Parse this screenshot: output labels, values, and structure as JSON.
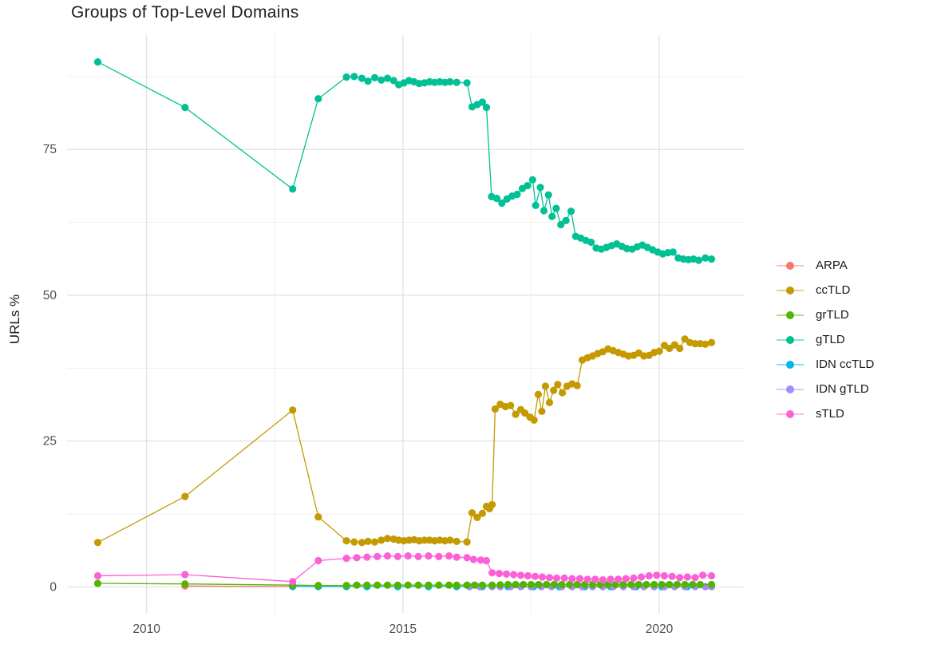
{
  "title": "Groups of Top-Level Domains",
  "chart_data": {
    "type": "line",
    "title": "Groups of Top-Level Domains",
    "xlabel": "",
    "ylabel": "URLs %",
    "xlim": [
      2008.45,
      2021.65
    ],
    "ylim": [
      -4.6,
      94.6
    ],
    "x_ticks": [
      2010,
      2015,
      2020
    ],
    "x_minor_ticks": [
      2012.5,
      2017.5
    ],
    "y_ticks": [
      0,
      25,
      50,
      75
    ],
    "y_minor_ticks": [
      12.5,
      37.5,
      62.5,
      87.5
    ],
    "grid": true,
    "legend_position": "right",
    "draw_order": [
      "ARPA",
      "IDN ccTLD",
      "IDN gTLD",
      "grTLD",
      "sTLD",
      "ccTLD",
      "gTLD"
    ],
    "series": [
      {
        "name": "ARPA",
        "color": "#F8766D",
        "points": [
          [
            2010.75,
            0.15
          ],
          [
            2012.85,
            0.05
          ]
        ]
      },
      {
        "name": "ccTLD",
        "color": "#C49A00",
        "points": [
          [
            2009.05,
            7.6
          ],
          [
            2010.75,
            15.5
          ],
          [
            2012.85,
            30.3
          ],
          [
            2013.35,
            12
          ],
          [
            2013.9,
            7.9
          ],
          [
            2014.05,
            7.7
          ],
          [
            2014.2,
            7.6
          ],
          [
            2014.32,
            7.8
          ],
          [
            2014.45,
            7.7
          ],
          [
            2014.58,
            8
          ],
          [
            2014.7,
            8.3
          ],
          [
            2014.82,
            8.2
          ],
          [
            2014.92,
            8
          ],
          [
            2015.02,
            7.9
          ],
          [
            2015.12,
            8
          ],
          [
            2015.22,
            8.1
          ],
          [
            2015.32,
            7.9
          ],
          [
            2015.42,
            8
          ],
          [
            2015.52,
            8
          ],
          [
            2015.62,
            7.9
          ],
          [
            2015.72,
            8
          ],
          [
            2015.82,
            7.9
          ],
          [
            2015.92,
            8
          ],
          [
            2016.05,
            7.8
          ],
          [
            2016.25,
            7.7
          ],
          [
            2016.35,
            12.7
          ],
          [
            2016.45,
            11.9
          ],
          [
            2016.55,
            12.6
          ],
          [
            2016.63,
            13.8
          ],
          [
            2016.69,
            13.4
          ],
          [
            2016.74,
            14.1
          ],
          [
            2016.8,
            30.5
          ],
          [
            2016.9,
            31.3
          ],
          [
            2017,
            30.9
          ],
          [
            2017.1,
            31.1
          ],
          [
            2017.2,
            29.6
          ],
          [
            2017.3,
            30.4
          ],
          [
            2017.38,
            29.8
          ],
          [
            2017.48,
            29.1
          ],
          [
            2017.56,
            28.6
          ],
          [
            2017.64,
            33
          ],
          [
            2017.71,
            30.1
          ],
          [
            2017.78,
            34.4
          ],
          [
            2017.86,
            31.6
          ],
          [
            2017.94,
            33.7
          ],
          [
            2018.02,
            34.7
          ],
          [
            2018.11,
            33.3
          ],
          [
            2018.2,
            34.4
          ],
          [
            2018.3,
            34.8
          ],
          [
            2018.4,
            34.5
          ],
          [
            2018.5,
            38.9
          ],
          [
            2018.6,
            39.3
          ],
          [
            2018.7,
            39.6
          ],
          [
            2018.8,
            40
          ],
          [
            2018.9,
            40.3
          ],
          [
            2019,
            40.8
          ],
          [
            2019.1,
            40.5
          ],
          [
            2019.2,
            40.2
          ],
          [
            2019.3,
            39.9
          ],
          [
            2019.4,
            39.6
          ],
          [
            2019.5,
            39.7
          ],
          [
            2019.6,
            40.1
          ],
          [
            2019.7,
            39.6
          ],
          [
            2019.8,
            39.7
          ],
          [
            2019.9,
            40.2
          ],
          [
            2020,
            40.4
          ],
          [
            2020.1,
            41.4
          ],
          [
            2020.2,
            40.9
          ],
          [
            2020.3,
            41.5
          ],
          [
            2020.4,
            40.9
          ],
          [
            2020.5,
            42.5
          ],
          [
            2020.6,
            41.9
          ],
          [
            2020.7,
            41.7
          ],
          [
            2020.8,
            41.7
          ],
          [
            2020.9,
            41.6
          ],
          [
            2021.02,
            41.9
          ]
        ]
      },
      {
        "name": "grTLD",
        "color": "#53B400",
        "points": [
          [
            2009.05,
            0.6
          ],
          [
            2010.75,
            0.5
          ],
          [
            2012.85,
            0.3
          ],
          [
            2013.35,
            0.25
          ],
          [
            2013.9,
            0.25
          ],
          [
            2014.1,
            0.3
          ],
          [
            2014.3,
            0.3
          ],
          [
            2014.5,
            0.3
          ],
          [
            2014.7,
            0.3
          ],
          [
            2014.9,
            0.3
          ],
          [
            2015.1,
            0.3
          ],
          [
            2015.3,
            0.3
          ],
          [
            2015.5,
            0.3
          ],
          [
            2015.7,
            0.3
          ],
          [
            2015.9,
            0.3
          ],
          [
            2016.05,
            0.3
          ],
          [
            2016.25,
            0.3
          ],
          [
            2016.4,
            0.3
          ],
          [
            2016.55,
            0.3
          ],
          [
            2016.74,
            0.3
          ],
          [
            2016.9,
            0.35
          ],
          [
            2017.05,
            0.4
          ],
          [
            2017.2,
            0.4
          ],
          [
            2017.35,
            0.4
          ],
          [
            2017.5,
            0.4
          ],
          [
            2017.65,
            0.4
          ],
          [
            2017.8,
            0.4
          ],
          [
            2017.95,
            0.4
          ],
          [
            2018.1,
            0.4
          ],
          [
            2018.25,
            0.4
          ],
          [
            2018.4,
            0.4
          ],
          [
            2018.55,
            0.4
          ],
          [
            2018.7,
            0.4
          ],
          [
            2018.85,
            0.4
          ],
          [
            2019,
            0.4
          ],
          [
            2019.15,
            0.4
          ],
          [
            2019.3,
            0.4
          ],
          [
            2019.45,
            0.4
          ],
          [
            2019.6,
            0.4
          ],
          [
            2019.75,
            0.4
          ],
          [
            2019.9,
            0.4
          ],
          [
            2020.05,
            0.4
          ],
          [
            2020.2,
            0.4
          ],
          [
            2020.35,
            0.4
          ],
          [
            2020.5,
            0.4
          ],
          [
            2020.65,
            0.4
          ],
          [
            2020.8,
            0.4
          ],
          [
            2021.02,
            0.4
          ]
        ]
      },
      {
        "name": "gTLD",
        "color": "#00C094",
        "points": [
          [
            2009.05,
            90
          ],
          [
            2010.75,
            82.2
          ],
          [
            2012.85,
            68.2
          ],
          [
            2013.35,
            83.7
          ],
          [
            2013.9,
            87.4
          ],
          [
            2014.05,
            87.5
          ],
          [
            2014.2,
            87.2
          ],
          [
            2014.32,
            86.7
          ],
          [
            2014.45,
            87.3
          ],
          [
            2014.58,
            86.9
          ],
          [
            2014.7,
            87.2
          ],
          [
            2014.82,
            86.8
          ],
          [
            2014.92,
            86.1
          ],
          [
            2015.02,
            86.4
          ],
          [
            2015.12,
            86.8
          ],
          [
            2015.22,
            86.6
          ],
          [
            2015.32,
            86.3
          ],
          [
            2015.42,
            86.4
          ],
          [
            2015.52,
            86.6
          ],
          [
            2015.62,
            86.5
          ],
          [
            2015.72,
            86.6
          ],
          [
            2015.82,
            86.5
          ],
          [
            2015.92,
            86.6
          ],
          [
            2016.05,
            86.5
          ],
          [
            2016.25,
            86.4
          ],
          [
            2016.35,
            82.3
          ],
          [
            2016.45,
            82.7
          ],
          [
            2016.55,
            83.1
          ],
          [
            2016.63,
            82.2
          ],
          [
            2016.73,
            66.9
          ],
          [
            2016.83,
            66.6
          ],
          [
            2016.93,
            65.8
          ],
          [
            2017.03,
            66.5
          ],
          [
            2017.13,
            67
          ],
          [
            2017.23,
            67.3
          ],
          [
            2017.33,
            68.3
          ],
          [
            2017.43,
            68.8
          ],
          [
            2017.53,
            69.8
          ],
          [
            2017.59,
            65.4
          ],
          [
            2017.68,
            68.5
          ],
          [
            2017.75,
            64.5
          ],
          [
            2017.84,
            67.2
          ],
          [
            2017.91,
            63.5
          ],
          [
            2017.99,
            64.9
          ],
          [
            2018.08,
            62.1
          ],
          [
            2018.18,
            62.8
          ],
          [
            2018.28,
            64.4
          ],
          [
            2018.37,
            60.1
          ],
          [
            2018.47,
            59.8
          ],
          [
            2018.57,
            59.4
          ],
          [
            2018.67,
            59.1
          ],
          [
            2018.77,
            58.1
          ],
          [
            2018.87,
            57.9
          ],
          [
            2018.97,
            58.2
          ],
          [
            2019.07,
            58.5
          ],
          [
            2019.17,
            58.8
          ],
          [
            2019.27,
            58.4
          ],
          [
            2019.37,
            58
          ],
          [
            2019.47,
            57.9
          ],
          [
            2019.57,
            58.3
          ],
          [
            2019.67,
            58.6
          ],
          [
            2019.77,
            58.2
          ],
          [
            2019.87,
            57.8
          ],
          [
            2019.97,
            57.4
          ],
          [
            2020.07,
            57.1
          ],
          [
            2020.17,
            57.3
          ],
          [
            2020.27,
            57.4
          ],
          [
            2020.37,
            56.4
          ],
          [
            2020.47,
            56.2
          ],
          [
            2020.57,
            56.1
          ],
          [
            2020.67,
            56.2
          ],
          [
            2020.77,
            56
          ],
          [
            2020.9,
            56.4
          ],
          [
            2021.02,
            56.2
          ]
        ]
      },
      {
        "name": "IDN ccTLD",
        "color": "#00B6EB",
        "points": [
          [
            2012.85,
            0.1
          ],
          [
            2013.35,
            0.05
          ],
          [
            2013.9,
            0.05
          ],
          [
            2014.3,
            0.05
          ],
          [
            2014.9,
            0.05
          ],
          [
            2015.5,
            0.05
          ],
          [
            2016.05,
            0.05
          ],
          [
            2016.55,
            0.05
          ],
          [
            2017.05,
            0.05
          ],
          [
            2017.55,
            0.05
          ],
          [
            2018.05,
            0.05
          ],
          [
            2018.55,
            0.05
          ],
          [
            2019.05,
            0.05
          ],
          [
            2019.55,
            0.05
          ],
          [
            2020.05,
            0.05
          ],
          [
            2020.55,
            0.05
          ],
          [
            2021.02,
            0.05
          ]
        ]
      },
      {
        "name": "IDN gTLD",
        "color": "#A58AFF",
        "points": [
          [
            2016.3,
            0.05
          ],
          [
            2016.5,
            0.05
          ],
          [
            2016.74,
            0.05
          ],
          [
            2016.9,
            0.05
          ],
          [
            2017.1,
            0.05
          ],
          [
            2017.3,
            0.05
          ],
          [
            2017.5,
            0.05
          ],
          [
            2017.7,
            0.05
          ],
          [
            2017.9,
            0.05
          ],
          [
            2018.1,
            0.05
          ],
          [
            2018.3,
            0.05
          ],
          [
            2018.5,
            0.05
          ],
          [
            2018.7,
            0.05
          ],
          [
            2018.9,
            0.05
          ],
          [
            2019.1,
            0.05
          ],
          [
            2019.3,
            0.05
          ],
          [
            2019.5,
            0.05
          ],
          [
            2019.7,
            0.05
          ],
          [
            2019.9,
            0.05
          ],
          [
            2020.1,
            0.05
          ],
          [
            2020.3,
            0.05
          ],
          [
            2020.5,
            0.05
          ],
          [
            2020.7,
            0.05
          ],
          [
            2020.9,
            0.05
          ],
          [
            2021.02,
            0.05
          ]
        ]
      },
      {
        "name": "sTLD",
        "color": "#FB61D7",
        "points": [
          [
            2009.05,
            1.9
          ],
          [
            2010.75,
            2.1
          ],
          [
            2012.85,
            0.9
          ],
          [
            2013.35,
            4.5
          ],
          [
            2013.9,
            4.9
          ],
          [
            2014.1,
            5
          ],
          [
            2014.3,
            5.1
          ],
          [
            2014.5,
            5.2
          ],
          [
            2014.7,
            5.3
          ],
          [
            2014.9,
            5.2
          ],
          [
            2015.1,
            5.3
          ],
          [
            2015.3,
            5.2
          ],
          [
            2015.5,
            5.3
          ],
          [
            2015.7,
            5.2
          ],
          [
            2015.9,
            5.3
          ],
          [
            2016.05,
            5.1
          ],
          [
            2016.25,
            5
          ],
          [
            2016.38,
            4.7
          ],
          [
            2016.52,
            4.6
          ],
          [
            2016.63,
            4.5
          ],
          [
            2016.74,
            2.4
          ],
          [
            2016.88,
            2.3
          ],
          [
            2017.02,
            2.2
          ],
          [
            2017.16,
            2.1
          ],
          [
            2017.3,
            2
          ],
          [
            2017.44,
            1.9
          ],
          [
            2017.58,
            1.8
          ],
          [
            2017.72,
            1.7
          ],
          [
            2017.86,
            1.6
          ],
          [
            2018,
            1.5
          ],
          [
            2018.15,
            1.5
          ],
          [
            2018.3,
            1.4
          ],
          [
            2018.45,
            1.4
          ],
          [
            2018.6,
            1.3
          ],
          [
            2018.75,
            1.3
          ],
          [
            2018.9,
            1.2
          ],
          [
            2019.05,
            1.3
          ],
          [
            2019.2,
            1.3
          ],
          [
            2019.35,
            1.4
          ],
          [
            2019.5,
            1.5
          ],
          [
            2019.65,
            1.7
          ],
          [
            2019.8,
            1.9
          ],
          [
            2019.95,
            2
          ],
          [
            2020.1,
            1.9
          ],
          [
            2020.25,
            1.8
          ],
          [
            2020.4,
            1.6
          ],
          [
            2020.55,
            1.7
          ],
          [
            2020.7,
            1.6
          ],
          [
            2020.85,
            2
          ],
          [
            2021.02,
            1.9
          ]
        ]
      }
    ]
  },
  "style": {
    "grid_major_color": "#e2e2e2",
    "grid_minor_color": "#ededed",
    "tick_label_color": "#4d4d4d",
    "text_color": "#1a1a1a"
  }
}
